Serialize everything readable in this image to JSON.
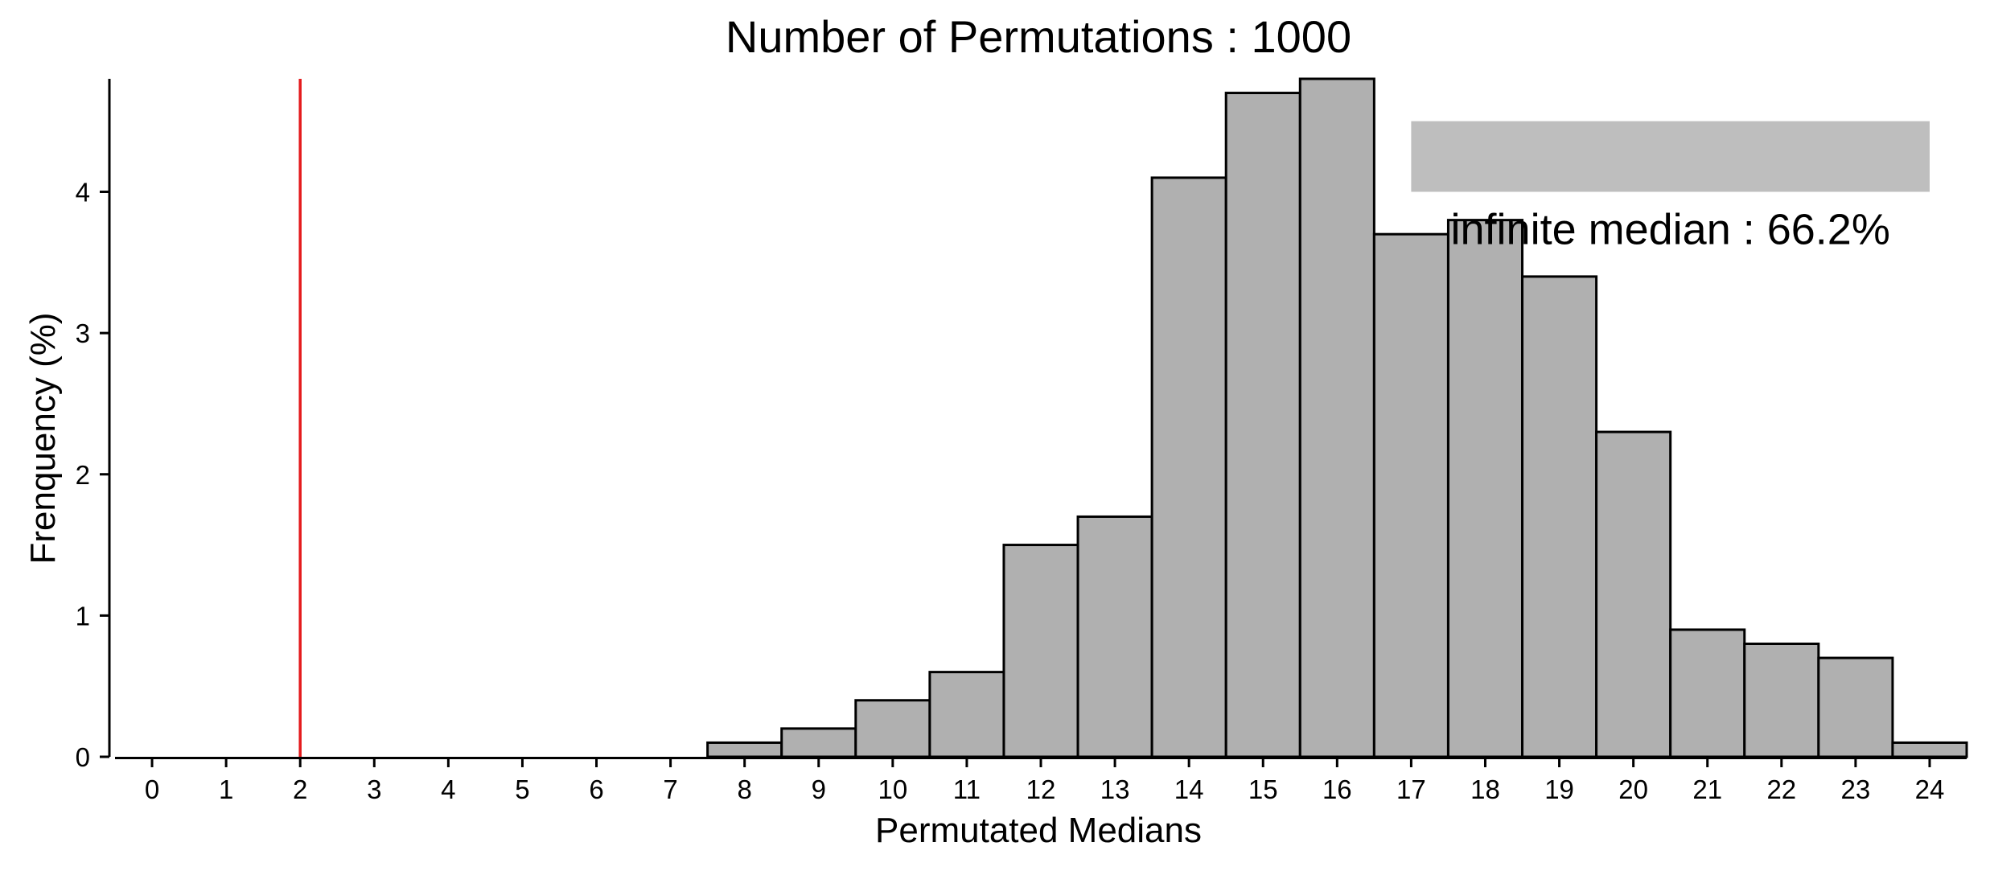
{
  "chart_data": {
    "type": "bar",
    "title": "Number of Permutations : 1000",
    "xlabel": "Permutated Medians",
    "ylabel": "Frenquency (%)",
    "categories": [
      "0",
      "1",
      "2",
      "3",
      "4",
      "5",
      "6",
      "7",
      "8",
      "9",
      "10",
      "11",
      "12",
      "13",
      "14",
      "15",
      "16",
      "17",
      "18",
      "19",
      "20",
      "21",
      "22",
      "23",
      "24"
    ],
    "values": [
      0,
      0,
      0,
      0,
      0,
      0,
      0,
      0,
      0.1,
      0.2,
      0.4,
      0.6,
      1.5,
      1.7,
      4.1,
      4.7,
      4.8,
      3.7,
      3.8,
      3.4,
      2.3,
      0.9,
      0.8,
      0.7,
      0.1
    ],
    "x_ticks": [
      0,
      1,
      2,
      3,
      4,
      5,
      6,
      7,
      8,
      9,
      10,
      11,
      12,
      13,
      14,
      15,
      16,
      17,
      18,
      19,
      20,
      21,
      22,
      23,
      24
    ],
    "y_ticks": [
      0,
      1,
      2,
      3,
      4
    ],
    "xlim": [
      -0.5,
      24.5
    ],
    "ylim": [
      0,
      4.8
    ],
    "grid": false,
    "reference_line": {
      "x": 2,
      "color": "#e41a1c"
    },
    "annotation": {
      "text": "infinite median : 66.2%",
      "box_x_range": [
        17,
        24
      ],
      "box_y_range": [
        4.0,
        4.5
      ],
      "box_color": "#bebebe"
    },
    "bar_fill": "#b0b0b0",
    "bar_stroke": "#000000"
  }
}
